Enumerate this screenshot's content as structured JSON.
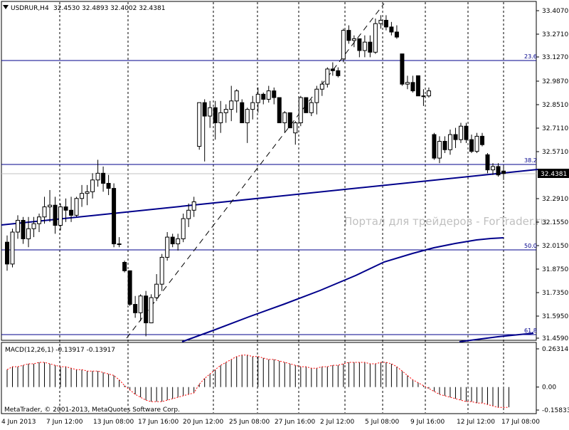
{
  "header": {
    "symbol_label": "USDRUR,H4",
    "ohlc_text": "32.4530 32.4893 32.4002 32.4381"
  },
  "watermark": "Портал для трейдеров - ForTrader.ru",
  "footer": {
    "copyright": "MetaTrader, © 2001-2013, MetaQuotes Software Corp."
  },
  "main_price_axis": {
    "labels": [
      "33.4070",
      "33.2710",
      "33.1270",
      "32.9870",
      "32.8510",
      "32.7110",
      "32.5710",
      "32.4381",
      "32.2910",
      "32.1550",
      "32.0150",
      "31.8750",
      "31.7350",
      "31.5950",
      "31.4590"
    ],
    "current_price": "32.4381"
  },
  "time_axis": {
    "labels": [
      "4 Jun 2013",
      "7 Jun 12:00",
      "13 Jun 08:00",
      "17 Jun 16:00",
      "20 Jun 12:00",
      "25 Jun 08:00",
      "27 Jun 16:00",
      "2 Jul 12:00",
      "5 Jul 08:00",
      "9 Jul 16:00",
      "12 Jul 12:00",
      "17 Jul 08:00"
    ]
  },
  "fibonacci_levels": [
    {
      "label": "23.6",
      "price": 33.13
    },
    {
      "label": "38.2",
      "price": 32.49
    },
    {
      "label": "50.0",
      "price": 32.0
    },
    {
      "label": "61.8",
      "price": 31.46
    }
  ],
  "macd": {
    "label": "MACD(12,26,1) -0.13917 -0.13917",
    "axis_labels": [
      "0.26314",
      "0.00",
      "-0.15833"
    ]
  },
  "colors": {
    "up_candle": "#ffffff",
    "down_candle": "#000000",
    "trend_line": "#00008b",
    "fib_line": "#00008b",
    "grid": "#000000",
    "watermark": "#c0c0c0",
    "macd_signal": "#ff0000"
  },
  "chart_data": {
    "type": "candlestick",
    "title": "USDRUR,H4",
    "ylim": [
      31.459,
      33.45
    ],
    "x_tick_labels": [
      "4 Jun 2013",
      "7 Jun 12:00",
      "13 Jun 08:00",
      "17 Jun 16:00",
      "20 Jun 12:00",
      "25 Jun 08:00",
      "27 Jun 16:00",
      "2 Jul 12:00",
      "5 Jul 08:00",
      "9 Jul 16:00",
      "12 Jul 12:00",
      "17 Jul 08:00"
    ],
    "candles": [
      {
        "o": 32.03,
        "h": 32.07,
        "l": 31.86,
        "c": 31.9
      },
      {
        "o": 31.9,
        "h": 32.11,
        "l": 31.88,
        "c": 32.09
      },
      {
        "o": 32.09,
        "h": 32.19,
        "l": 32.05,
        "c": 32.16
      },
      {
        "o": 32.16,
        "h": 32.18,
        "l": 32.02,
        "c": 32.05
      },
      {
        "o": 32.05,
        "h": 32.18,
        "l": 32.0,
        "c": 32.11
      },
      {
        "o": 32.11,
        "h": 32.18,
        "l": 32.06,
        "c": 32.14
      },
      {
        "o": 32.14,
        "h": 32.2,
        "l": 32.09,
        "c": 32.18
      },
      {
        "o": 32.18,
        "h": 32.3,
        "l": 32.14,
        "c": 32.24
      },
      {
        "o": 32.24,
        "h": 32.34,
        "l": 32.15,
        "c": 32.25
      },
      {
        "o": 32.25,
        "h": 32.3,
        "l": 32.08,
        "c": 32.13
      },
      {
        "o": 32.13,
        "h": 32.26,
        "l": 32.1,
        "c": 32.24
      },
      {
        "o": 32.24,
        "h": 32.29,
        "l": 32.15,
        "c": 32.22
      },
      {
        "o": 32.22,
        "h": 32.3,
        "l": 32.15,
        "c": 32.19
      },
      {
        "o": 32.19,
        "h": 32.3,
        "l": 32.18,
        "c": 32.29
      },
      {
        "o": 32.29,
        "h": 32.37,
        "l": 32.24,
        "c": 32.32
      },
      {
        "o": 32.32,
        "h": 32.37,
        "l": 32.25,
        "c": 32.33
      },
      {
        "o": 32.33,
        "h": 32.44,
        "l": 32.29,
        "c": 32.4
      },
      {
        "o": 32.4,
        "h": 32.52,
        "l": 32.36,
        "c": 32.44
      },
      {
        "o": 32.44,
        "h": 32.48,
        "l": 32.33,
        "c": 32.38
      },
      {
        "o": 32.38,
        "h": 32.43,
        "l": 32.31,
        "c": 32.35
      },
      {
        "o": 32.35,
        "h": 32.38,
        "l": 32.0,
        "c": 32.02
      },
      {
        "o": 32.02,
        "h": 32.06,
        "l": 32.0,
        "c": 32.02
      },
      {
        "o": 31.91,
        "h": 31.92,
        "l": 31.85,
        "c": 31.86
      },
      {
        "o": 31.86,
        "h": 31.86,
        "l": 31.65,
        "c": 31.66
      },
      {
        "o": 31.66,
        "h": 31.71,
        "l": 31.58,
        "c": 31.61
      },
      {
        "o": 31.61,
        "h": 31.72,
        "l": 31.56,
        "c": 31.71
      },
      {
        "o": 31.71,
        "h": 31.74,
        "l": 31.47,
        "c": 31.55
      },
      {
        "o": 31.55,
        "h": 31.72,
        "l": 31.55,
        "c": 31.7
      },
      {
        "o": 31.7,
        "h": 31.84,
        "l": 31.68,
        "c": 31.78
      },
      {
        "o": 31.78,
        "h": 31.96,
        "l": 31.74,
        "c": 31.94
      },
      {
        "o": 31.94,
        "h": 32.09,
        "l": 31.92,
        "c": 32.06
      },
      {
        "o": 32.06,
        "h": 32.08,
        "l": 32.0,
        "c": 32.02
      },
      {
        "o": 32.02,
        "h": 32.08,
        "l": 31.98,
        "c": 32.05
      },
      {
        "o": 32.05,
        "h": 32.2,
        "l": 32.03,
        "c": 32.17
      },
      {
        "o": 32.17,
        "h": 32.26,
        "l": 32.12,
        "c": 32.22
      },
      {
        "o": 32.22,
        "h": 32.3,
        "l": 32.18,
        "c": 32.27
      },
      {
        "o": 32.6,
        "h": 32.86,
        "l": 32.58,
        "c": 32.86
      },
      {
        "o": 32.86,
        "h": 32.88,
        "l": 32.51,
        "c": 32.78
      },
      {
        "o": 32.78,
        "h": 32.87,
        "l": 32.71,
        "c": 32.83
      },
      {
        "o": 32.83,
        "h": 32.87,
        "l": 32.64,
        "c": 32.74
      },
      {
        "o": 32.74,
        "h": 32.87,
        "l": 32.68,
        "c": 32.8
      },
      {
        "o": 32.8,
        "h": 32.85,
        "l": 32.74,
        "c": 32.82
      },
      {
        "o": 32.82,
        "h": 32.96,
        "l": 32.75,
        "c": 32.87
      },
      {
        "o": 32.87,
        "h": 32.94,
        "l": 32.8,
        "c": 32.93
      },
      {
        "o": 32.86,
        "h": 32.88,
        "l": 32.74,
        "c": 32.74
      },
      {
        "o": 32.74,
        "h": 32.83,
        "l": 32.62,
        "c": 32.82
      },
      {
        "o": 32.82,
        "h": 32.9,
        "l": 32.76,
        "c": 32.86
      },
      {
        "o": 32.86,
        "h": 32.95,
        "l": 32.8,
        "c": 32.91
      },
      {
        "o": 32.91,
        "h": 32.92,
        "l": 32.85,
        "c": 32.88
      },
      {
        "o": 32.88,
        "h": 32.96,
        "l": 32.86,
        "c": 32.93
      },
      {
        "o": 32.93,
        "h": 32.95,
        "l": 32.85,
        "c": 32.89
      },
      {
        "o": 32.89,
        "h": 32.89,
        "l": 32.74,
        "c": 32.74
      },
      {
        "o": 32.74,
        "h": 32.81,
        "l": 32.68,
        "c": 32.8
      },
      {
        "o": 32.8,
        "h": 32.8,
        "l": 32.71,
        "c": 32.71
      },
      {
        "o": 32.68,
        "h": 32.75,
        "l": 32.61,
        "c": 32.74
      },
      {
        "o": 32.74,
        "h": 32.9,
        "l": 32.72,
        "c": 32.89
      },
      {
        "o": 32.89,
        "h": 32.89,
        "l": 32.8,
        "c": 32.8
      },
      {
        "o": 32.8,
        "h": 32.88,
        "l": 32.78,
        "c": 32.86
      },
      {
        "o": 32.86,
        "h": 32.96,
        "l": 32.79,
        "c": 32.94
      },
      {
        "o": 32.94,
        "h": 32.99,
        "l": 32.9,
        "c": 32.97
      },
      {
        "o": 32.97,
        "h": 33.07,
        "l": 32.95,
        "c": 33.06
      },
      {
        "o": 33.06,
        "h": 33.1,
        "l": 33.02,
        "c": 33.05
      },
      {
        "o": 33.05,
        "h": 33.07,
        "l": 33.01,
        "c": 33.02
      },
      {
        "o": 33.12,
        "h": 33.3,
        "l": 33.1,
        "c": 33.29
      },
      {
        "o": 33.29,
        "h": 33.32,
        "l": 33.21,
        "c": 33.23
      },
      {
        "o": 33.23,
        "h": 33.26,
        "l": 33.19,
        "c": 33.24
      },
      {
        "o": 33.24,
        "h": 33.24,
        "l": 33.13,
        "c": 33.17
      },
      {
        "o": 33.17,
        "h": 33.26,
        "l": 33.13,
        "c": 33.22
      },
      {
        "o": 33.22,
        "h": 33.26,
        "l": 33.13,
        "c": 33.16
      },
      {
        "o": 33.16,
        "h": 33.36,
        "l": 33.15,
        "c": 33.33
      },
      {
        "o": 33.33,
        "h": 33.38,
        "l": 33.3,
        "c": 33.35
      },
      {
        "o": 33.35,
        "h": 33.38,
        "l": 33.29,
        "c": 33.31
      },
      {
        "o": 33.31,
        "h": 33.34,
        "l": 33.26,
        "c": 33.28
      },
      {
        "o": 33.28,
        "h": 33.32,
        "l": 33.24,
        "c": 33.25
      },
      {
        "o": 33.15,
        "h": 33.15,
        "l": 32.96,
        "c": 32.97
      },
      {
        "o": 32.97,
        "h": 33.02,
        "l": 32.94,
        "c": 32.98
      },
      {
        "o": 32.98,
        "h": 33.02,
        "l": 32.92,
        "c": 32.93
      },
      {
        "o": 33.02,
        "h": 33.02,
        "l": 32.9,
        "c": 32.9
      },
      {
        "o": 32.9,
        "h": 32.94,
        "l": 32.84,
        "c": 32.9
      },
      {
        "o": 32.9,
        "h": 32.95,
        "l": 32.89,
        "c": 32.93
      },
      {
        "o": 32.67,
        "h": 32.68,
        "l": 32.52,
        "c": 32.53
      },
      {
        "o": 32.53,
        "h": 32.66,
        "l": 32.5,
        "c": 32.63
      },
      {
        "o": 32.63,
        "h": 32.66,
        "l": 32.56,
        "c": 32.58
      },
      {
        "o": 32.58,
        "h": 32.7,
        "l": 32.55,
        "c": 32.67
      },
      {
        "o": 32.67,
        "h": 32.71,
        "l": 32.59,
        "c": 32.64
      },
      {
        "o": 32.64,
        "h": 32.74,
        "l": 32.62,
        "c": 32.72
      },
      {
        "o": 32.72,
        "h": 32.74,
        "l": 32.62,
        "c": 32.64
      },
      {
        "o": 32.64,
        "h": 32.67,
        "l": 32.56,
        "c": 32.57
      },
      {
        "o": 32.57,
        "h": 32.68,
        "l": 32.56,
        "c": 32.66
      },
      {
        "o": 32.66,
        "h": 32.68,
        "l": 32.6,
        "c": 32.61
      },
      {
        "o": 32.55,
        "h": 32.56,
        "l": 32.44,
        "c": 32.46
      },
      {
        "o": 32.46,
        "h": 32.5,
        "l": 32.43,
        "c": 32.48
      },
      {
        "o": 32.48,
        "h": 32.5,
        "l": 32.42,
        "c": 32.43
      },
      {
        "o": 32.453,
        "h": 32.4893,
        "l": 32.4002,
        "c": 32.4381
      }
    ],
    "macd_values": [
      0.12,
      0.14,
      0.14,
      0.15,
      0.16,
      0.16,
      0.17,
      0.17,
      0.16,
      0.15,
      0.14,
      0.14,
      0.13,
      0.12,
      0.12,
      0.11,
      0.11,
      0.11,
      0.1,
      0.09,
      0.08,
      0.05,
      0.01,
      -0.02,
      -0.05,
      -0.07,
      -0.09,
      -0.1,
      -0.1,
      -0.1,
      -0.09,
      -0.08,
      -0.07,
      -0.06,
      -0.05,
      -0.04,
      0.02,
      0.06,
      0.09,
      0.12,
      0.15,
      0.17,
      0.19,
      0.21,
      0.22,
      0.22,
      0.21,
      0.21,
      0.2,
      0.19,
      0.19,
      0.18,
      0.17,
      0.16,
      0.15,
      0.14,
      0.14,
      0.13,
      0.13,
      0.14,
      0.14,
      0.15,
      0.15,
      0.16,
      0.17,
      0.17,
      0.17,
      0.17,
      0.16,
      0.16,
      0.17,
      0.17,
      0.16,
      0.14,
      0.11,
      0.08,
      0.05,
      0.03,
      0.01,
      -0.01,
      -0.03,
      -0.05,
      -0.06,
      -0.07,
      -0.08,
      -0.09,
      -0.1,
      -0.1,
      -0.11,
      -0.11,
      -0.12,
      -0.13,
      -0.14,
      -0.14,
      -0.13917
    ],
    "macd_ylim": [
      -0.15833,
      0.26314
    ]
  }
}
